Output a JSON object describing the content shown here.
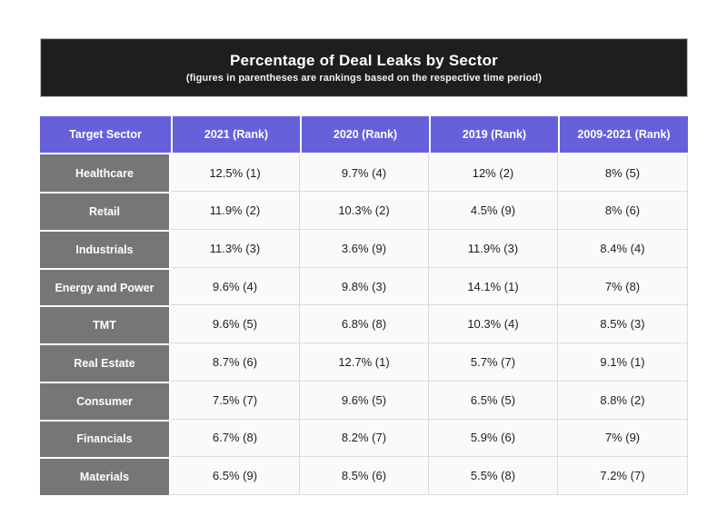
{
  "banner": {
    "title": "Percentage of Deal Leaks by Sector",
    "subtitle": "(figures in parentheses are rankings based on the respective time period)"
  },
  "colors": {
    "banner_bg": "#1e1e1e",
    "header_bg": "#6661db",
    "sector_bg": "#767676",
    "cell_bg": "#fbfafa",
    "grid_line": "#dcdcdc",
    "text_dark": "#1e1e1e",
    "text_light": "#ffffff"
  },
  "chart_data": {
    "type": "table",
    "title": "Percentage of Deal Leaks by Sector",
    "subtitle": "(figures in parentheses are rankings based on the respective time period)",
    "columns": [
      "Target Sector",
      "2021 (Rank)",
      "2020 (Rank)",
      "2019 (Rank)",
      "2009-2021 (Rank)"
    ],
    "rows": [
      {
        "sector": "Healthcare",
        "values": [
          "12.5% (1)",
          "9.7% (4)",
          "12% (2)",
          "8% (5)"
        ]
      },
      {
        "sector": "Retail",
        "values": [
          "11.9% (2)",
          "10.3% (2)",
          "4.5% (9)",
          "8% (6)"
        ]
      },
      {
        "sector": "Industrials",
        "values": [
          "11.3% (3)",
          "3.6% (9)",
          "11.9% (3)",
          "8.4% (4)"
        ]
      },
      {
        "sector": "Energy and Power",
        "values": [
          "9.6% (4)",
          "9.8% (3)",
          "14.1% (1)",
          "7% (8)"
        ]
      },
      {
        "sector": "TMT",
        "values": [
          "9.6% (5)",
          "6.8% (8)",
          "10.3% (4)",
          "8.5% (3)"
        ]
      },
      {
        "sector": "Real Estate",
        "values": [
          "8.7% (6)",
          "12.7% (1)",
          "5.7% (7)",
          "9.1% (1)"
        ]
      },
      {
        "sector": "Consumer",
        "values": [
          "7.5% (7)",
          "9.6% (5)",
          "6.5% (5)",
          "8.8% (2)"
        ]
      },
      {
        "sector": "Financials",
        "values": [
          "6.7% (8)",
          "8.2% (7)",
          "5.9% (6)",
          "7% (9)"
        ]
      },
      {
        "sector": "Materials",
        "values": [
          "6.5% (9)",
          "8.5% (6)",
          "5.5% (8)",
          "7.2% (7)"
        ]
      }
    ]
  }
}
